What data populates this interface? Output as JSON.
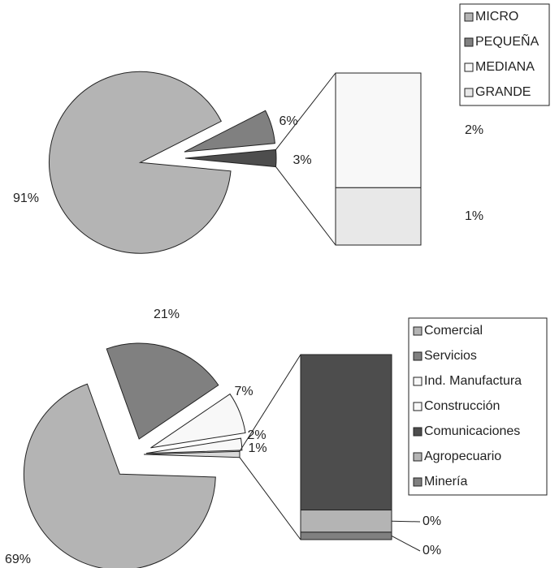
{
  "chart_data": [
    {
      "type": "pie_of_bar",
      "pie": {
        "categories": [
          "MICRO",
          "PEQUEÑA"
        ],
        "values": [
          91,
          6
        ],
        "value_labels": [
          "91%",
          "6%"
        ],
        "colors": [
          "#b4b4b4",
          "#808080"
        ]
      },
      "other": {
        "value": 3,
        "value_label": "3%",
        "color": "#4d4d4d"
      },
      "bar": {
        "categories": [
          "MEDIANA",
          "GRANDE"
        ],
        "values": [
          2,
          1
        ],
        "value_labels": [
          "2%",
          "1%"
        ],
        "colors": [
          "#f8f8f8",
          "#e8e8e8"
        ]
      }
    },
    {
      "type": "pie_of_bar",
      "pie": {
        "categories": [
          "Comercial",
          "Servicios",
          "Ind. Manufactura",
          "Construcción"
        ],
        "values": [
          69,
          21,
          7,
          2
        ],
        "value_labels": [
          "69%",
          "21%",
          "7%",
          "2%"
        ],
        "colors": [
          "#b4b4b4",
          "#808080",
          "#f8f8f8",
          "#f8f8f8"
        ]
      },
      "other": {
        "value": 1,
        "value_label": "1%",
        "color": "#d9d9d9"
      },
      "bar": {
        "categories": [
          "Comunicaciones",
          "Agropecuario",
          "Minería"
        ],
        "values": [
          0.84,
          0.12,
          0.04
        ],
        "value_labels": [
          null,
          "0%",
          "0%"
        ],
        "colors": [
          "#4d4d4d",
          "#b4b4b4",
          "#808080"
        ]
      }
    }
  ]
}
